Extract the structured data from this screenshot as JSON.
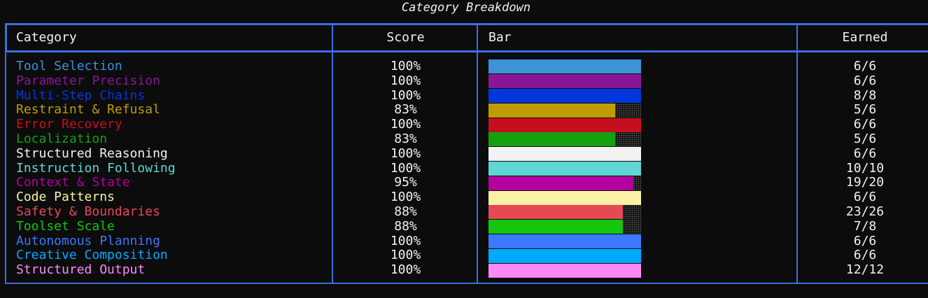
{
  "title": "Category Breakdown",
  "table": {
    "headers": [
      "Category",
      "Score",
      "Bar",
      "Earned"
    ],
    "rows": [
      {
        "category": "Tool Selection",
        "color": "#3d92d8",
        "score": {
          "value": 100,
          "label": "100%"
        },
        "earned": "6/6"
      },
      {
        "category": "Parameter Precision",
        "color": "#881798",
        "score": {
          "value": 100,
          "label": "100%"
        },
        "earned": "6/6"
      },
      {
        "category": "Multi-Step Chains",
        "color": "#0037da",
        "score": {
          "value": 100,
          "label": "100%"
        },
        "earned": "8/8"
      },
      {
        "category": "Restraint & Refusal",
        "color": "#c19c00",
        "score": {
          "value": 83,
          "label": "83%"
        },
        "earned": "5/6"
      },
      {
        "category": "Error Recovery",
        "color": "#c50f1f",
        "score": {
          "value": 100,
          "label": "100%"
        },
        "earned": "6/6"
      },
      {
        "category": "Localization",
        "color": "#13a10e",
        "score": {
          "value": 83,
          "label": "83%"
        },
        "earned": "5/6"
      },
      {
        "category": "Structured Reasoning",
        "color": "#f2f2f2",
        "score": {
          "value": 100,
          "label": "100%"
        },
        "earned": "6/6"
      },
      {
        "category": "Instruction Following",
        "color": "#61d6d6",
        "score": {
          "value": 100,
          "label": "100%"
        },
        "earned": "10/10"
      },
      {
        "category": "Context & State",
        "color": "#b4009e",
        "score": {
          "value": 95,
          "label": "95%"
        },
        "earned": "19/20"
      },
      {
        "category": "Code Patterns",
        "color": "#f9f1a5",
        "score": {
          "value": 100,
          "label": "100%"
        },
        "earned": "6/6"
      },
      {
        "category": "Safety & Boundaries",
        "color": "#e74856",
        "score": {
          "value": 88,
          "label": "88%"
        },
        "earned": "23/26"
      },
      {
        "category": "Toolset Scale",
        "color": "#16c60c",
        "score": {
          "value": 88,
          "label": "88%"
        },
        "earned": "7/8"
      },
      {
        "category": "Autonomous Planning",
        "color": "#3b78ff",
        "score": {
          "value": 100,
          "label": "100%"
        },
        "earned": "6/6"
      },
      {
        "category": "Creative Composition",
        "color": "#00aaff",
        "score": {
          "value": 100,
          "label": "100%"
        },
        "earned": "6/6"
      },
      {
        "category": "Structured Output",
        "color": "#ff88f5",
        "score": {
          "value": 100,
          "label": "100%"
        },
        "earned": "12/12"
      }
    ]
  }
}
